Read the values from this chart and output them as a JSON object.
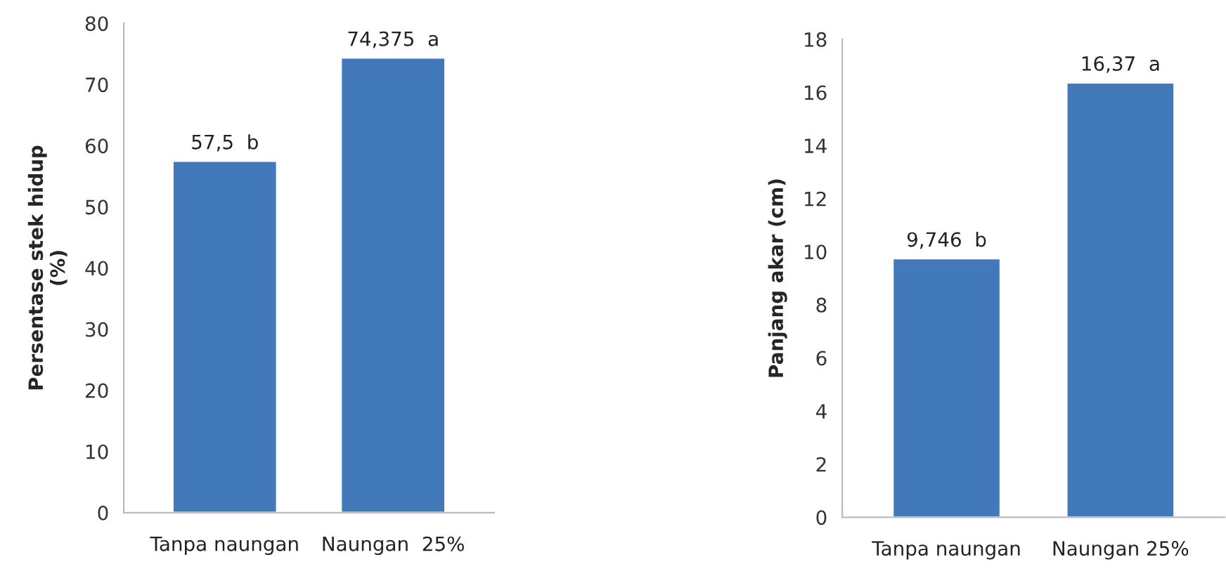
{
  "chart_data": [
    {
      "type": "bar",
      "ylabel": "Persentase stek hidup\n(%)",
      "categories": [
        "Tanpa naungan",
        "Naungan  25%"
      ],
      "series": [
        {
          "color": "#4279bb",
          "values": [
            57.5,
            74.375
          ]
        }
      ],
      "value_labels": [
        "57,5  b",
        "74,375  a"
      ],
      "ylim": [
        0,
        80
      ],
      "yticks": [
        0,
        10,
        20,
        30,
        40,
        50,
        60,
        70,
        80
      ],
      "grid": false,
      "legend": false
    },
    {
      "type": "bar",
      "ylabel": "Panjang akar (cm)",
      "categories": [
        "Tanpa naungan",
        "Naungan 25%"
      ],
      "series": [
        {
          "color": "#4279bb",
          "values": [
            9.746,
            16.37
          ]
        }
      ],
      "value_labels": [
        "9,746  b",
        "16,37  a"
      ],
      "ylim": [
        0,
        18
      ],
      "yticks": [
        0,
        2,
        4,
        6,
        8,
        10,
        12,
        14,
        16,
        18
      ],
      "grid": false,
      "legend": false
    }
  ]
}
